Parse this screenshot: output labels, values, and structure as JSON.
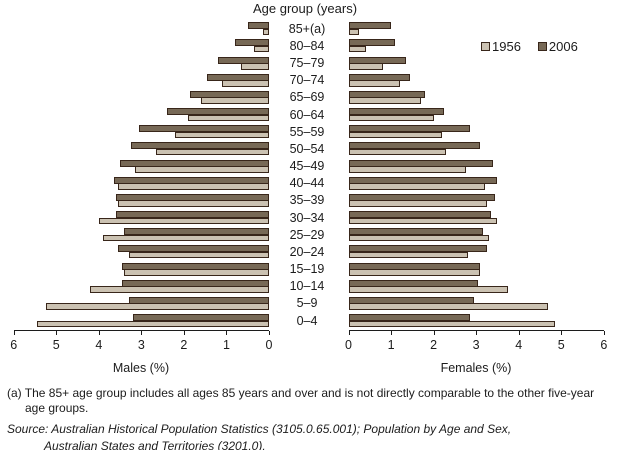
{
  "chart_data": {
    "type": "bar",
    "subtype": "population-pyramid",
    "title": "Age group (years)",
    "orientation": "horizontal, males left (axis reversed), females right",
    "categories_top_to_bottom": [
      "85+(a)",
      "80–84",
      "75–79",
      "70–74",
      "65–69",
      "60–64",
      "55–59",
      "50–54",
      "45–49",
      "40–44",
      "35–39",
      "30–34",
      "25–29",
      "20–24",
      "15–19",
      "10–14",
      "5–9",
      "0–4"
    ],
    "x_axis": {
      "males_label": "Males (%)",
      "females_label": "Females (%)",
      "ticks": [
        0,
        1,
        2,
        3,
        4,
        5,
        6
      ],
      "range": [
        0,
        6
      ],
      "grid": false
    },
    "legend_position": "top-right",
    "series": [
      {
        "name": "1956",
        "color": "#cbc2b2",
        "males": [
          0.15,
          0.35,
          0.65,
          1.1,
          1.6,
          1.9,
          2.2,
          2.65,
          3.15,
          3.55,
          3.55,
          4.0,
          3.9,
          3.3,
          3.4,
          4.2,
          5.25,
          5.45
        ],
        "females": [
          0.25,
          0.4,
          0.8,
          1.2,
          1.7,
          2.0,
          2.2,
          2.3,
          2.75,
          3.2,
          3.25,
          3.5,
          3.3,
          2.8,
          3.1,
          3.75,
          4.7,
          4.85
        ]
      },
      {
        "name": "2006",
        "color": "#776956",
        "males": [
          0.5,
          0.8,
          1.2,
          1.45,
          1.85,
          2.4,
          3.05,
          3.25,
          3.5,
          3.65,
          3.6,
          3.6,
          3.4,
          3.55,
          3.45,
          3.45,
          3.3,
          3.2
        ],
        "females": [
          1.0,
          1.1,
          1.35,
          1.45,
          1.8,
          2.25,
          2.85,
          3.1,
          3.4,
          3.5,
          3.45,
          3.35,
          3.15,
          3.25,
          3.1,
          3.05,
          2.95,
          2.85
        ]
      }
    ]
  },
  "notes": {
    "footnote_marker": "(a)",
    "footnote_line1": "The 85+ age group includes all ages 85 years and over and is not directly comparable to the other five-year",
    "footnote_line2": "age groups.",
    "source_label": "Source:",
    "source_line1": "Australian Historical Population Statistics (3105.0.65.001); Population by Age and Sex,",
    "source_line2": "Australian States and Territories (3201.0)."
  }
}
